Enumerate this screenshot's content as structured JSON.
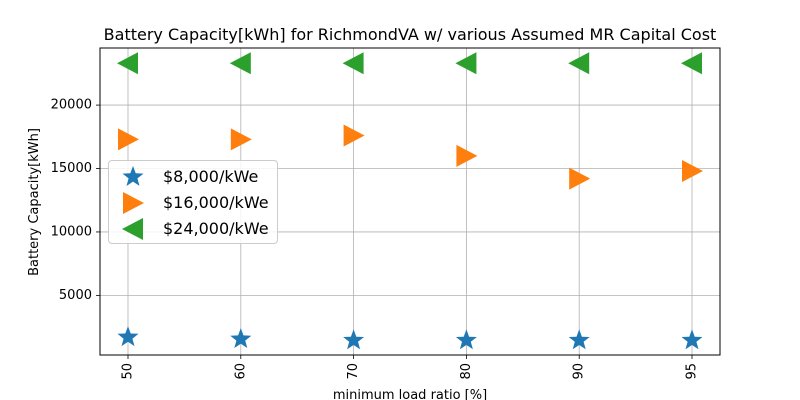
{
  "chart_data": {
    "type": "scatter",
    "title": "Battery Capacity[kWh] for RichmondVA w/ various Assumed MR Capital Cost",
    "xlabel": "minimum load ratio [%]",
    "ylabel": "Battery Capacity[kWh]",
    "categories": [
      "50",
      "60",
      "70",
      "80",
      "90",
      "95"
    ],
    "ylim": [
      300,
      24500
    ],
    "yticks": [
      5000,
      10000,
      15000,
      20000
    ],
    "ytick_labels": [
      "5000",
      "10000",
      "15000",
      "20000"
    ],
    "grid": true,
    "legend_position": "center-left",
    "series": [
      {
        "name": "$8,000/kWe",
        "marker": "star",
        "color": "#1f77b4",
        "values": [
          1700,
          1550,
          1450,
          1450,
          1450,
          1450
        ]
      },
      {
        "name": "$16,000/kWe",
        "marker": "triangle-right",
        "color": "#ff7f0e",
        "values": [
          17300,
          17300,
          17600,
          16000,
          14200,
          14800
        ]
      },
      {
        "name": "$24,000/kWe",
        "marker": "triangle-left",
        "color": "#2ca02c",
        "values": [
          23300,
          23300,
          23300,
          23300,
          23300,
          23300
        ]
      }
    ]
  }
}
